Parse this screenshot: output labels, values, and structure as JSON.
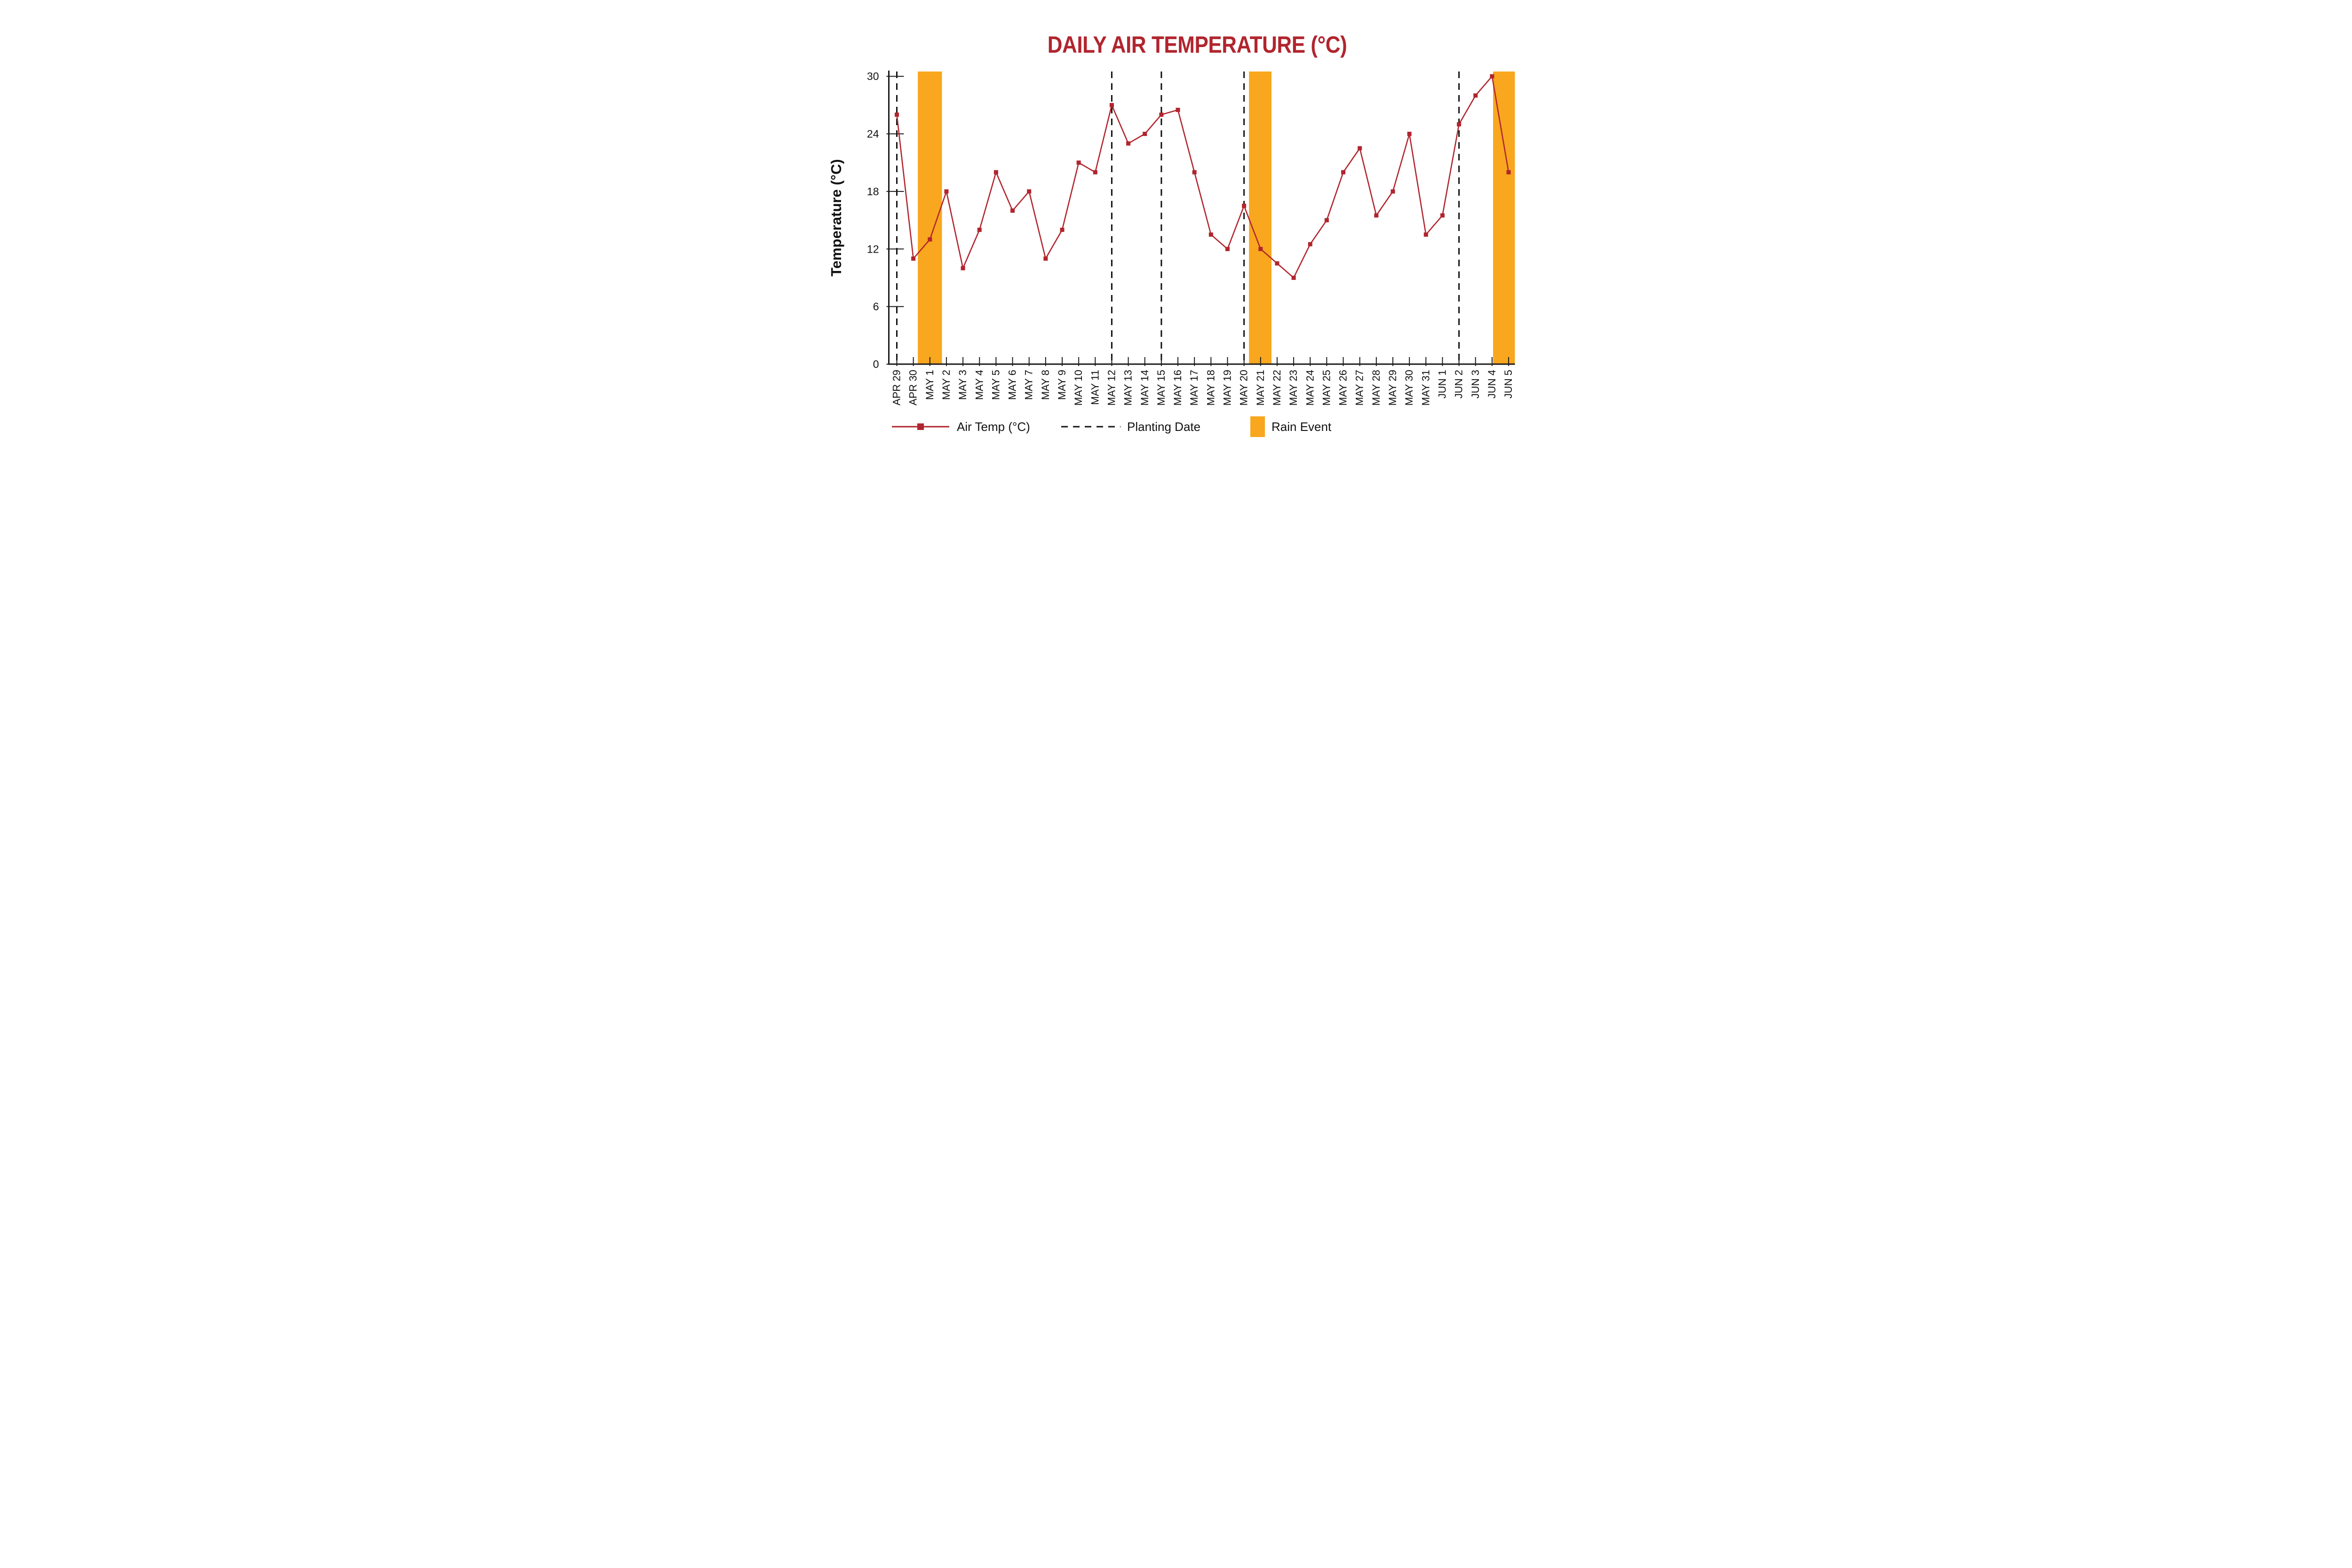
{
  "title": "DAILY AIR TEMPERATURE (°C)",
  "colors": {
    "line_red": "#B1252E",
    "title_red": "#B1252E",
    "rain_orange": "#F8A71E",
    "planting_black": "#111111",
    "axis_black": "#1a1a1a",
    "text_black": "#111111"
  },
  "legend": [
    {
      "type": "line-marker",
      "label": "Air Temp (°C)"
    },
    {
      "type": "dashed-line",
      "label": "Planting Date"
    },
    {
      "type": "swatch",
      "label": "Rain Event"
    }
  ],
  "chart_data": {
    "type": "line",
    "title": "DAILY AIR TEMPERATURE (°C)",
    "xlabel": "",
    "ylabel": "Temperature (°C)",
    "ylim": [
      0,
      30.5
    ],
    "yticks": [
      0,
      6,
      12,
      18,
      24,
      30
    ],
    "grid": "off",
    "legend_position": "bottom",
    "categories": [
      "APR 29",
      "APR 30",
      "MAY 1",
      "MAY 2",
      "MAY 3",
      "MAY 4",
      "MAY 5",
      "MAY 6",
      "MAY 7",
      "MAY 8",
      "MAY 9",
      "MAY 10",
      "MAY 11",
      "MAY 12",
      "MAY 13",
      "MAY 14",
      "MAY 15",
      "MAY 16",
      "MAY 17",
      "MAY 18",
      "MAY 19",
      "MAY 20",
      "MAY 21",
      "MAY 22",
      "MAY 23",
      "MAY 24",
      "MAY 25",
      "MAY 26",
      "MAY 27",
      "MAY 28",
      "MAY 29",
      "MAY 30",
      "MAY 31",
      "JUN 1",
      "JUN 2",
      "JUN 3",
      "JUN 4",
      "JUN 5"
    ],
    "series": [
      {
        "name": "Air Temp (°C)",
        "values": [
          26,
          11,
          13,
          18,
          10,
          14,
          20,
          16,
          18,
          11,
          14,
          21,
          20,
          27,
          23,
          24,
          26,
          26.5,
          20,
          13.5,
          12,
          16.5,
          12,
          10.5,
          9,
          12.5,
          15,
          20,
          22.5,
          15.5,
          18,
          24,
          13.5,
          15.5,
          25,
          28,
          30,
          20
        ]
      }
    ],
    "planting_dates": [
      "APR 29",
      "MAY 12",
      "MAY 15",
      "MAY 20",
      "JUN 2"
    ],
    "rain_events": [
      {
        "date": "MAY 1",
        "from_day": 1.27,
        "to_day": 2.73
      },
      {
        "date": "MAY 21",
        "from_day": 21.3,
        "to_day": 22.66
      },
      {
        "date": "JUN 5",
        "from_day": 36.06,
        "to_day": 37.38
      }
    ]
  }
}
